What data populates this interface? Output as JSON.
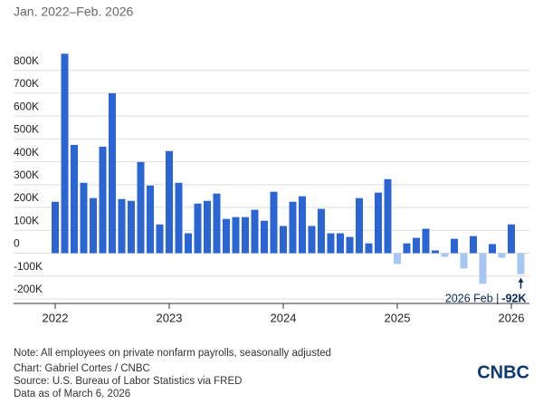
{
  "chart_data": {
    "type": "bar",
    "subtitle": "Jan. 2022–Feb. 2026",
    "categories": [
      "2022",
      null,
      null,
      null,
      null,
      null,
      null,
      null,
      null,
      null,
      null,
      null,
      "2023",
      null,
      null,
      null,
      null,
      null,
      null,
      null,
      null,
      null,
      null,
      null,
      "2024",
      null,
      null,
      null,
      null,
      null,
      null,
      null,
      null,
      null,
      null,
      null,
      "2025",
      null,
      null,
      null,
      null,
      null,
      null,
      null,
      null,
      null,
      null,
      null,
      "2026",
      null
    ],
    "values": [
      225000,
      873000,
      474000,
      308000,
      241000,
      466000,
      700000,
      237000,
      229000,
      399000,
      296000,
      126000,
      447000,
      308000,
      87000,
      217000,
      229000,
      261000,
      150000,
      158000,
      158000,
      190000,
      142000,
      269000,
      119000,
      225000,
      249000,
      119000,
      194000,
      87000,
      87000,
      71000,
      241000,
      43000,
      265000,
      324000,
      -47000,
      43000,
      67000,
      107000,
      12000,
      -16000,
      63000,
      -67000,
      75000,
      -134000,
      40000,
      -20000,
      126000,
      -92000
    ],
    "color": "#2b65d3",
    "negative_color": "#a8c6f3",
    "ylim": [
      -220000,
      890000
    ],
    "yticks": [
      {
        "value": -200000,
        "label": "-200K"
      },
      {
        "value": -100000,
        "label": "-100K"
      },
      0,
      {
        "value": 100000,
        "label": "100K"
      },
      {
        "value": 200000,
        "label": "200K"
      },
      {
        "value": 300000,
        "label": "300K"
      },
      {
        "value": 400000,
        "label": "400K"
      },
      {
        "value": 500000,
        "label": "500K"
      },
      {
        "value": 600000,
        "label": "600K"
      },
      {
        "value": 700000,
        "label": "700K"
      },
      {
        "value": 800000,
        "label": "800K"
      }
    ],
    "grid": true,
    "annotation": {
      "text": "2026 Feb |",
      "label": "-92K"
    },
    "notes": [
      "Note: All employees on private nonfarm payrolls, seasonally adjusted",
      "Chart: Gabriel Cortes / CNBC",
      "Source: U.S. Bureau of Labor Statistics via FRED",
      "Data as of March 6, 2026"
    ],
    "logo": "CNBC"
  }
}
